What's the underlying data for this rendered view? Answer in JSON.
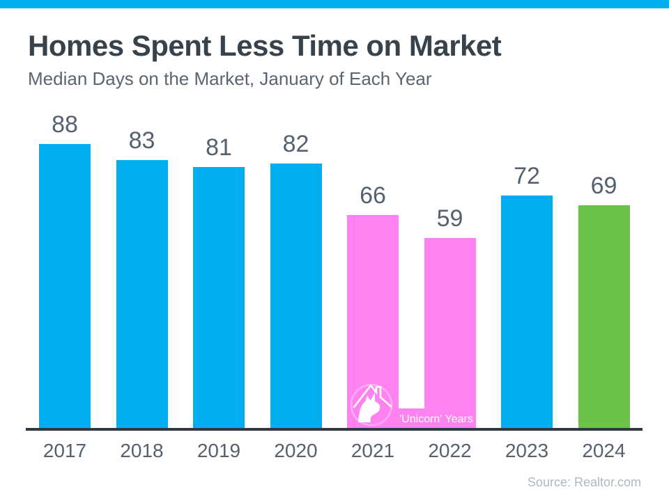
{
  "page": {
    "accent_strip_color": "#00AEEF",
    "background_color": "#FFFFFF"
  },
  "header": {
    "title": "Homes Spent Less Time on Market",
    "subtitle": "Median Days on the Market, January of Each Year"
  },
  "footer": {
    "source": "Source: Realtor.com"
  },
  "chart_data": {
    "type": "bar",
    "title": "Homes Spent Less Time on Market",
    "subtitle": "Median Days on the Market, January of Each Year",
    "categories": [
      "2017",
      "2018",
      "2019",
      "2020",
      "2021",
      "2022",
      "2023",
      "2024"
    ],
    "values": [
      88,
      83,
      81,
      82,
      66,
      59,
      72,
      69
    ],
    "bar_colors": [
      "#00AEEF",
      "#00AEEF",
      "#00AEEF",
      "#00AEEF",
      "#FF82F0",
      "#FF82F0",
      "#00AEEF",
      "#6CC24A"
    ],
    "value_labels_shown": true,
    "value_label_color": "#55616E",
    "category_label_color": "#55616E",
    "xlabel": "",
    "ylabel": "",
    "ylim": [
      0,
      88
    ],
    "grid": false,
    "y_axis_shown": false,
    "axis_line_color": "#30383F",
    "annotation": {
      "label": "'Unicorn' Years",
      "applies_to_categories": [
        "2021",
        "2022"
      ],
      "icon": "unicorn-house-icon",
      "band_color": "#FF82F0",
      "text_color": "#FFFFFF"
    }
  }
}
